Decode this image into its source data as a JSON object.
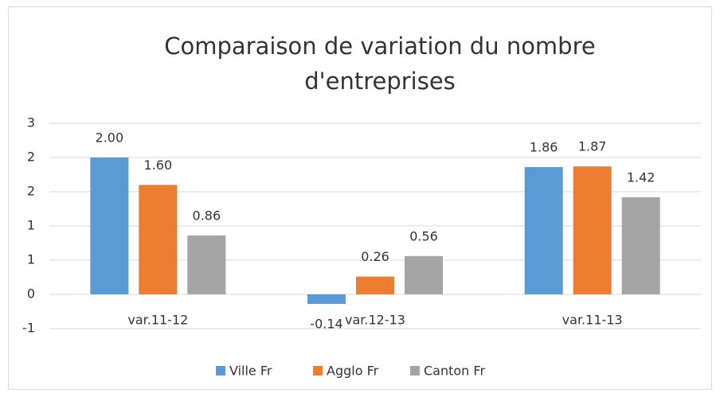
{
  "chart_data": {
    "type": "bar",
    "title": "Comparaison de variation du nombre d'entreprises",
    "categories": [
      "var.11-12",
      "var.12-13",
      "var.11-13"
    ],
    "series": [
      {
        "name": "Ville Fr",
        "color": "#5b9bd5",
        "values": [
          2.0,
          -0.14,
          1.86
        ],
        "value_labels": [
          "2.00",
          "-0.14",
          "1.86"
        ]
      },
      {
        "name": "Agglo Fr",
        "color": "#ed7d31",
        "values": [
          1.6,
          0.26,
          1.87
        ],
        "value_labels": [
          "1.60",
          "0.26",
          "1.87"
        ]
      },
      {
        "name": "Canton Fr",
        "color": "#a5a5a5",
        "values": [
          0.86,
          0.56,
          1.42
        ],
        "value_labels": [
          "0.86",
          "0.56",
          "1.42"
        ]
      }
    ],
    "ylim": [
      -0.5,
      2.5
    ],
    "yticks": [
      {
        "value": -0.5,
        "label": "-1"
      },
      0,
      {
        "value": 0.5,
        "label": "1"
      },
      1,
      {
        "value": 1.5,
        "label": "2"
      },
      2,
      {
        "value": 2.5,
        "label": "3"
      }
    ],
    "grid": true,
    "legend": "bottom"
  }
}
